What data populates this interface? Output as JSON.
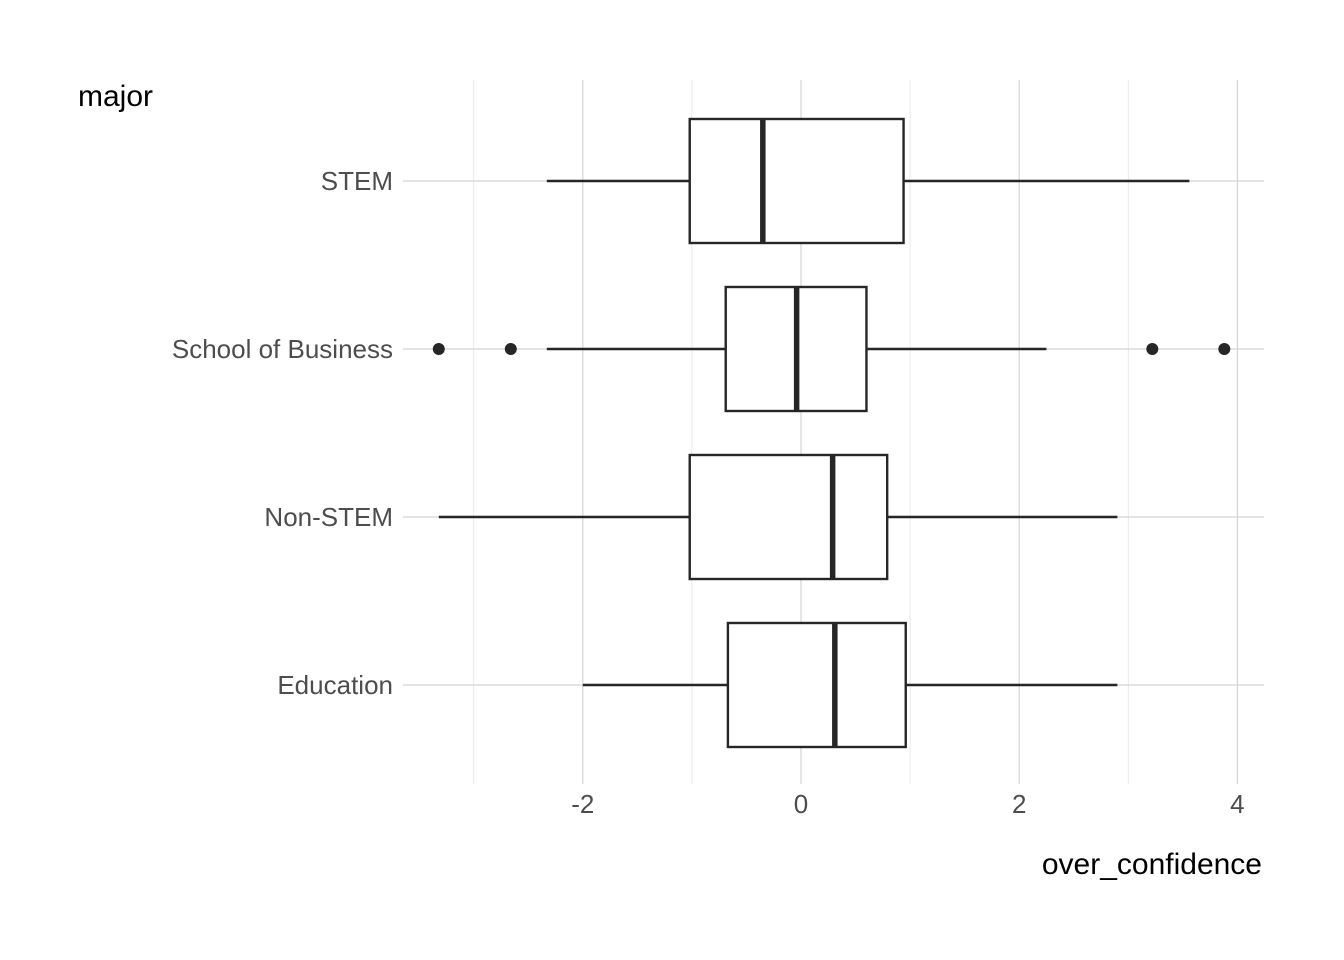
{
  "chart_data": {
    "type": "boxplot",
    "orientation": "horizontal",
    "title": "",
    "xlabel": "over_confidence",
    "ylabel": "major",
    "xlim": [
      -3.5,
      4.2
    ],
    "x_ticks": [
      -2,
      0,
      2,
      4
    ],
    "x_tick_labels": [
      "-2",
      "0",
      "2",
      "4"
    ],
    "grid": true,
    "categories": [
      "STEM",
      "School of Business",
      "Non-STEM",
      "Education"
    ],
    "series": [
      {
        "category": "STEM",
        "whisker_low": -2.33,
        "q1": -1.02,
        "median": -0.35,
        "q3": 0.94,
        "whisker_high": 3.56,
        "outliers": []
      },
      {
        "category": "School of Business",
        "whisker_low": -2.33,
        "q1": -0.69,
        "median": -0.04,
        "q3": 0.6,
        "whisker_high": 2.25,
        "outliers": [
          -3.32,
          -2.66,
          3.22,
          3.88
        ]
      },
      {
        "category": "Non-STEM",
        "whisker_low": -3.32,
        "q1": -1.02,
        "median": 0.29,
        "q3": 0.79,
        "whisker_high": 2.9,
        "outliers": []
      },
      {
        "category": "Education",
        "whisker_low": -2.0,
        "q1": -0.67,
        "median": 0.31,
        "q3": 0.96,
        "whisker_high": 2.9,
        "outliers": []
      }
    ]
  }
}
